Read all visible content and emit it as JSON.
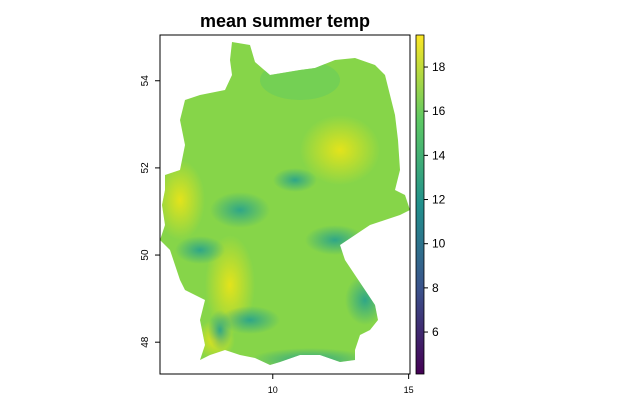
{
  "chart_data": {
    "type": "heatmap",
    "title": "mean summer temp",
    "xlabel": "",
    "ylabel": "",
    "xlim": [
      5.85,
      15.05
    ],
    "ylim": [
      47.27,
      55.05
    ],
    "x_ticks": [
      "10",
      "15"
    ],
    "y_ticks": [
      "48",
      "50",
      "52",
      "54"
    ],
    "colorbar": {
      "range": [
        4.1,
        19.45
      ],
      "ticks": [
        "6",
        "8",
        "10",
        "12",
        "14",
        "16",
        "18"
      ],
      "palette": "viridis",
      "colors": [
        "#440154",
        "#3b528b",
        "#21908c",
        "#5dc963",
        "#fde725"
      ]
    },
    "description_values": {
      "typical": 16.5,
      "warm_regions": 18.5,
      "cool_regions": 12.5
    }
  }
}
